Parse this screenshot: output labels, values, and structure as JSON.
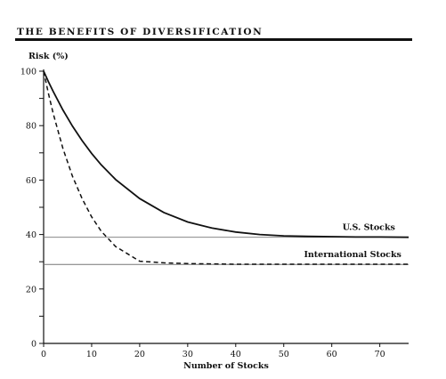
{
  "title": "THE BENEFITS OF DIVERSIFICATION",
  "chart_data": {
    "type": "line",
    "title": "THE BENEFITS OF DIVERSIFICATION",
    "xlabel": "Number of Stocks",
    "ylabel": "Risk (%)",
    "xlim": [
      0,
      76
    ],
    "ylim": [
      0,
      100
    ],
    "x_ticks": [
      0,
      10,
      20,
      30,
      40,
      50,
      60,
      70
    ],
    "y_ticks": [
      0,
      20,
      40,
      60,
      80,
      100
    ],
    "grid": false,
    "series": [
      {
        "name": "U.S. Stocks",
        "style": "solid",
        "color": "#111111",
        "x": [
          0,
          1,
          2,
          4,
          6,
          8,
          10,
          12,
          15,
          20,
          25,
          30,
          35,
          40,
          45,
          50,
          55,
          60,
          65,
          70,
          76
        ],
        "y": [
          100,
          96.1,
          92.5,
          85.8,
          79.8,
          74.5,
          69.8,
          65.6,
          60.2,
          53.2,
          48.1,
          44.6,
          42.4,
          40.9,
          40.0,
          39.5,
          39.3,
          39.2,
          39.1,
          39.1,
          39.0
        ]
      },
      {
        "name": "International Stocks",
        "style": "dashed",
        "color": "#111111",
        "x": [
          0,
          1,
          2,
          4,
          6,
          8,
          10,
          12,
          15,
          20,
          25,
          30,
          35,
          40,
          45,
          50,
          55,
          60,
          65,
          70,
          76
        ],
        "y": [
          100,
          91.8,
          84.4,
          71.7,
          61.4,
          53.2,
          46.5,
          41.2,
          35.6,
          30.2,
          29.6,
          29.3,
          29.2,
          29.1,
          29.1,
          29.1,
          29.1,
          29.1,
          29.1,
          29.1,
          29.1
        ]
      }
    ],
    "reference_lines": [
      {
        "y": 39
      },
      {
        "y": 29
      }
    ]
  }
}
